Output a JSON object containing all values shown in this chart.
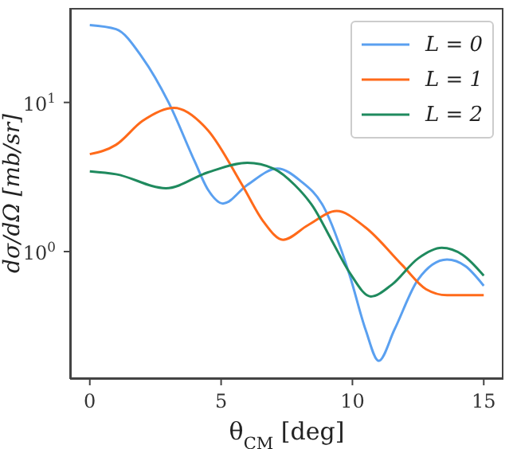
{
  "chart_data": {
    "type": "line",
    "xlabel": "θ$_{CM}$ [deg]",
    "ylabel": "dσ/dΩ [mb/sr]",
    "log": "y",
    "xlim": [
      -0.75,
      15.75
    ],
    "xticks": [
      0,
      5,
      10,
      15
    ],
    "ylim": [
      0.14,
      43
    ],
    "yticks": [
      {
        "value": 1,
        "label": "10$^{0}$"
      },
      {
        "value": 10,
        "label": "10$^{1}$"
      }
    ],
    "legend": "top right",
    "marker": "none",
    "line_style": "solid",
    "series": [
      {
        "name": "L = 0",
        "color": "#5aa0f0",
        "x": [
          0,
          1,
          2,
          3,
          4,
          4.5,
          5.07,
          6,
          7.15,
          8,
          8.9,
          9.9,
          10.5,
          11,
          11.6,
          12.5,
          13.6,
          14.3,
          15
        ],
        "values": [
          33,
          31,
          20,
          10,
          4.0,
          2.6,
          2.1,
          2.8,
          3.6,
          3.0,
          2.0,
          0.69,
          0.3,
          0.185,
          0.3,
          0.65,
          0.885,
          0.8,
          0.59
        ]
      },
      {
        "name": "L = 1",
        "color": "#ff6a1a",
        "x": [
          0,
          1,
          2,
          3.2,
          4.5,
          5.8,
          6.6,
          7.36,
          8.3,
          9.4,
          10.5,
          11.9,
          12.8,
          13.6,
          15
        ],
        "values": [
          4.5,
          5.2,
          7.5,
          9.2,
          6.5,
          2.8,
          1.6,
          1.2,
          1.5,
          1.87,
          1.45,
          0.81,
          0.56,
          0.51,
          0.51
        ]
      },
      {
        "name": "L = 2",
        "color": "#1f8a5e",
        "x": [
          0,
          1,
          2.9,
          4.5,
          6,
          7,
          7.8,
          8.5,
          9.2,
          9.9,
          10.7,
          11.5,
          12.5,
          13.4,
          14.2,
          15
        ],
        "values": [
          3.45,
          3.3,
          2.66,
          3.4,
          3.94,
          3.6,
          2.8,
          2.0,
          1.2,
          0.72,
          0.5,
          0.6,
          0.9,
          1.06,
          0.95,
          0.69
        ]
      }
    ]
  }
}
